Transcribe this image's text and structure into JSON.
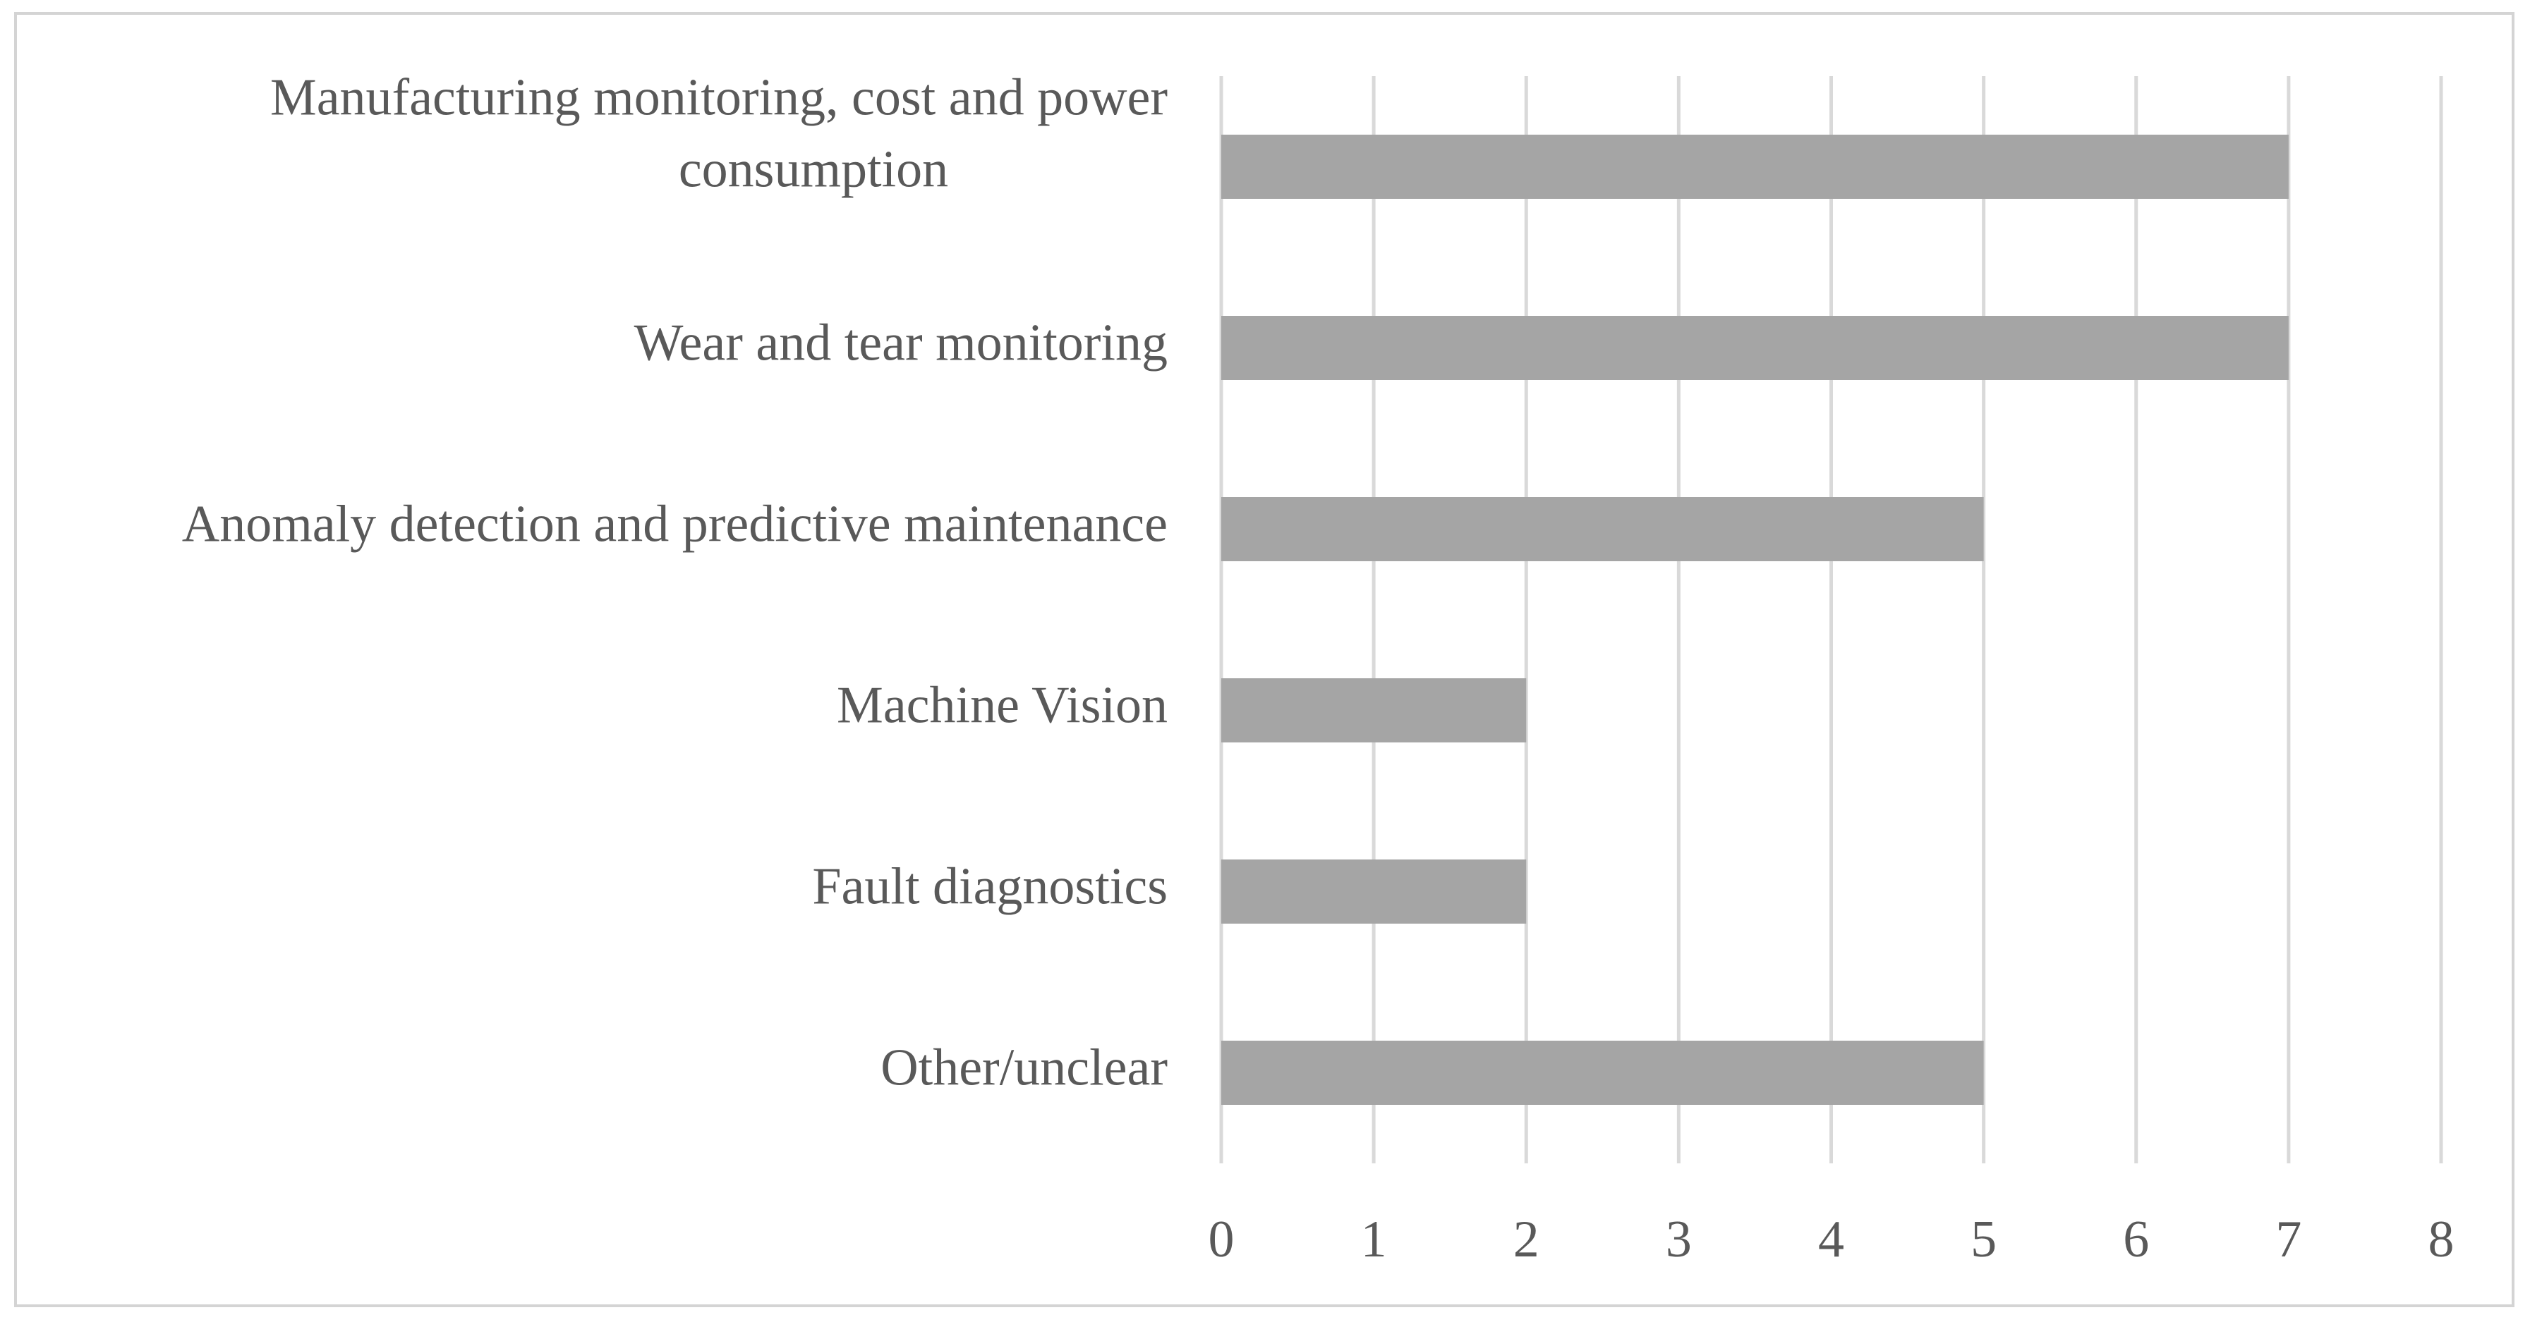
{
  "chart_data": {
    "type": "bar",
    "orientation": "horizontal",
    "categories": [
      "Manufacturing monitoring, cost and power consumption",
      "Wear and tear monitoring",
      "Anomaly detection and predictive maintenance",
      "Machine Vision",
      "Fault diagnostics",
      "Other/unclear"
    ],
    "category_lines": [
      [
        "Manufacturing monitoring, cost and power",
        "consumption"
      ],
      [
        "Wear and tear monitoring"
      ],
      [
        "Anomaly detection and predictive maintenance"
      ],
      [
        "Machine Vision"
      ],
      [
        "Fault diagnostics"
      ],
      [
        "Other/unclear"
      ]
    ],
    "values": [
      7,
      7,
      5,
      2,
      2,
      5
    ],
    "xlim": [
      0,
      8
    ],
    "xticks": [
      "0",
      "1",
      "2",
      "3",
      "4",
      "5",
      "6",
      "7",
      "8"
    ],
    "grid": "vertical",
    "legend": "none",
    "colors": {
      "bar": "#a5a5a5",
      "grid": "#d9d9d9",
      "text": "#595959",
      "frame": "#d4d4d4"
    },
    "title": "",
    "xlabel": "",
    "ylabel": ""
  }
}
